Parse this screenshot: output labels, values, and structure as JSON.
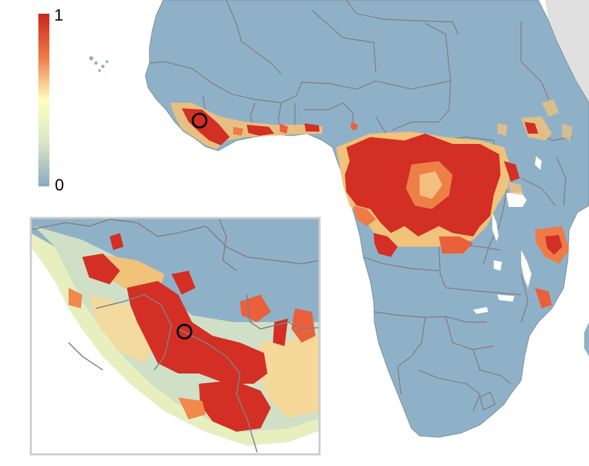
{
  "legend": {
    "max_label": "1",
    "min_label": "0",
    "colors": {
      "high": "#c9251c",
      "mid_high": "#ee7a46",
      "mid": "#ffffbf",
      "mid_low": "#d7e6c6",
      "low": "#89a9c2"
    }
  },
  "colors": {
    "land": "#8fb1c8",
    "border": "#808080",
    "neighbor_land": "#e0e0e0",
    "inset_frame": "#cccccc",
    "hotspot_red": "#d32f24",
    "hotspot_orange": "#f0894a",
    "hotspot_yellow": "#f6e7a0",
    "marker": "#000000"
  },
  "inset": {
    "description_shown": false
  }
}
